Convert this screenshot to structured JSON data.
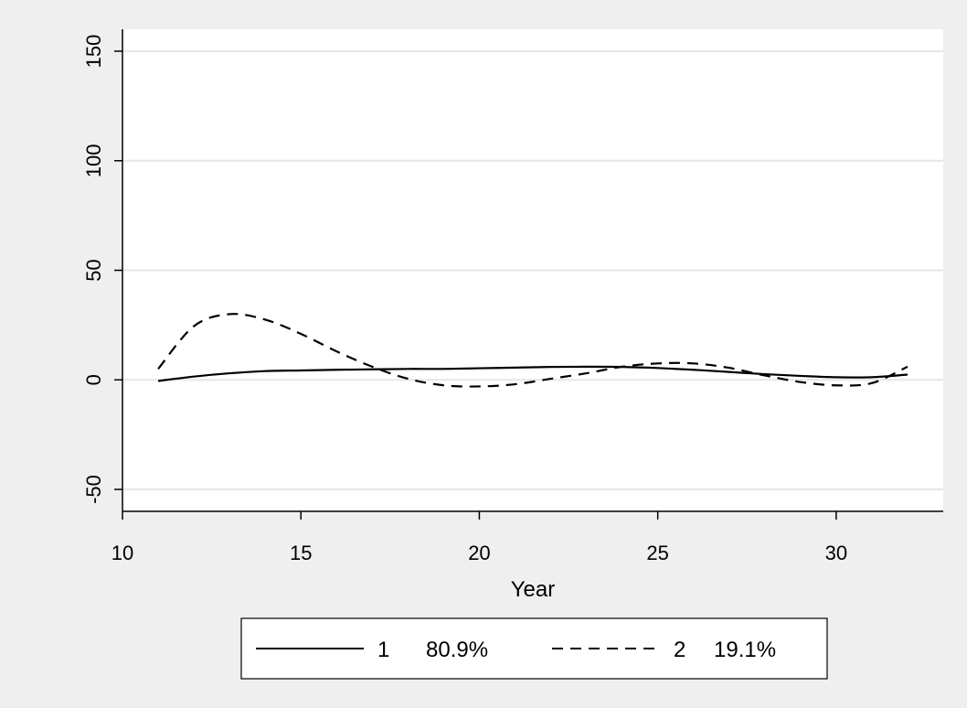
{
  "chart_data": {
    "type": "line",
    "title": "",
    "xlabel": "Year",
    "ylabel": "",
    "xlim": [
      10,
      33
    ],
    "ylim": [
      -60,
      160
    ],
    "xticks": [
      10,
      15,
      20,
      25,
      30
    ],
    "yticks": [
      -50,
      0,
      50,
      100,
      150
    ],
    "grid": true,
    "legend_position": "bottom",
    "series": [
      {
        "name": "1",
        "share": "80.9%",
        "style": "solid",
        "color": "#000000",
        "x": [
          11,
          12,
          13,
          14,
          15,
          16,
          17,
          18,
          19,
          20,
          21,
          22,
          23,
          24,
          25,
          26,
          27,
          28,
          29,
          30,
          31,
          32
        ],
        "y": [
          -0.5,
          1.5,
          3,
          4,
          4.3,
          4.6,
          4.8,
          5,
          5,
          5.3,
          5.6,
          5.9,
          6,
          5.9,
          5.4,
          4.6,
          3.6,
          2.6,
          1.8,
          1.2,
          1.2,
          2.4
        ]
      },
      {
        "name": "2",
        "share": "19.1%",
        "style": "dashed",
        "color": "#000000",
        "x": [
          11,
          12,
          13,
          14,
          15,
          16,
          17,
          18,
          19,
          20,
          21,
          22,
          23,
          24,
          25,
          26,
          27,
          28,
          29,
          30,
          31,
          32
        ],
        "y": [
          5,
          24.5,
          30,
          27.5,
          21,
          13,
          6,
          0.5,
          -2.5,
          -3,
          -2,
          0.5,
          3,
          6,
          7.5,
          7.5,
          5.5,
          2,
          -1,
          -2.5,
          -1.5,
          6
        ]
      }
    ]
  }
}
